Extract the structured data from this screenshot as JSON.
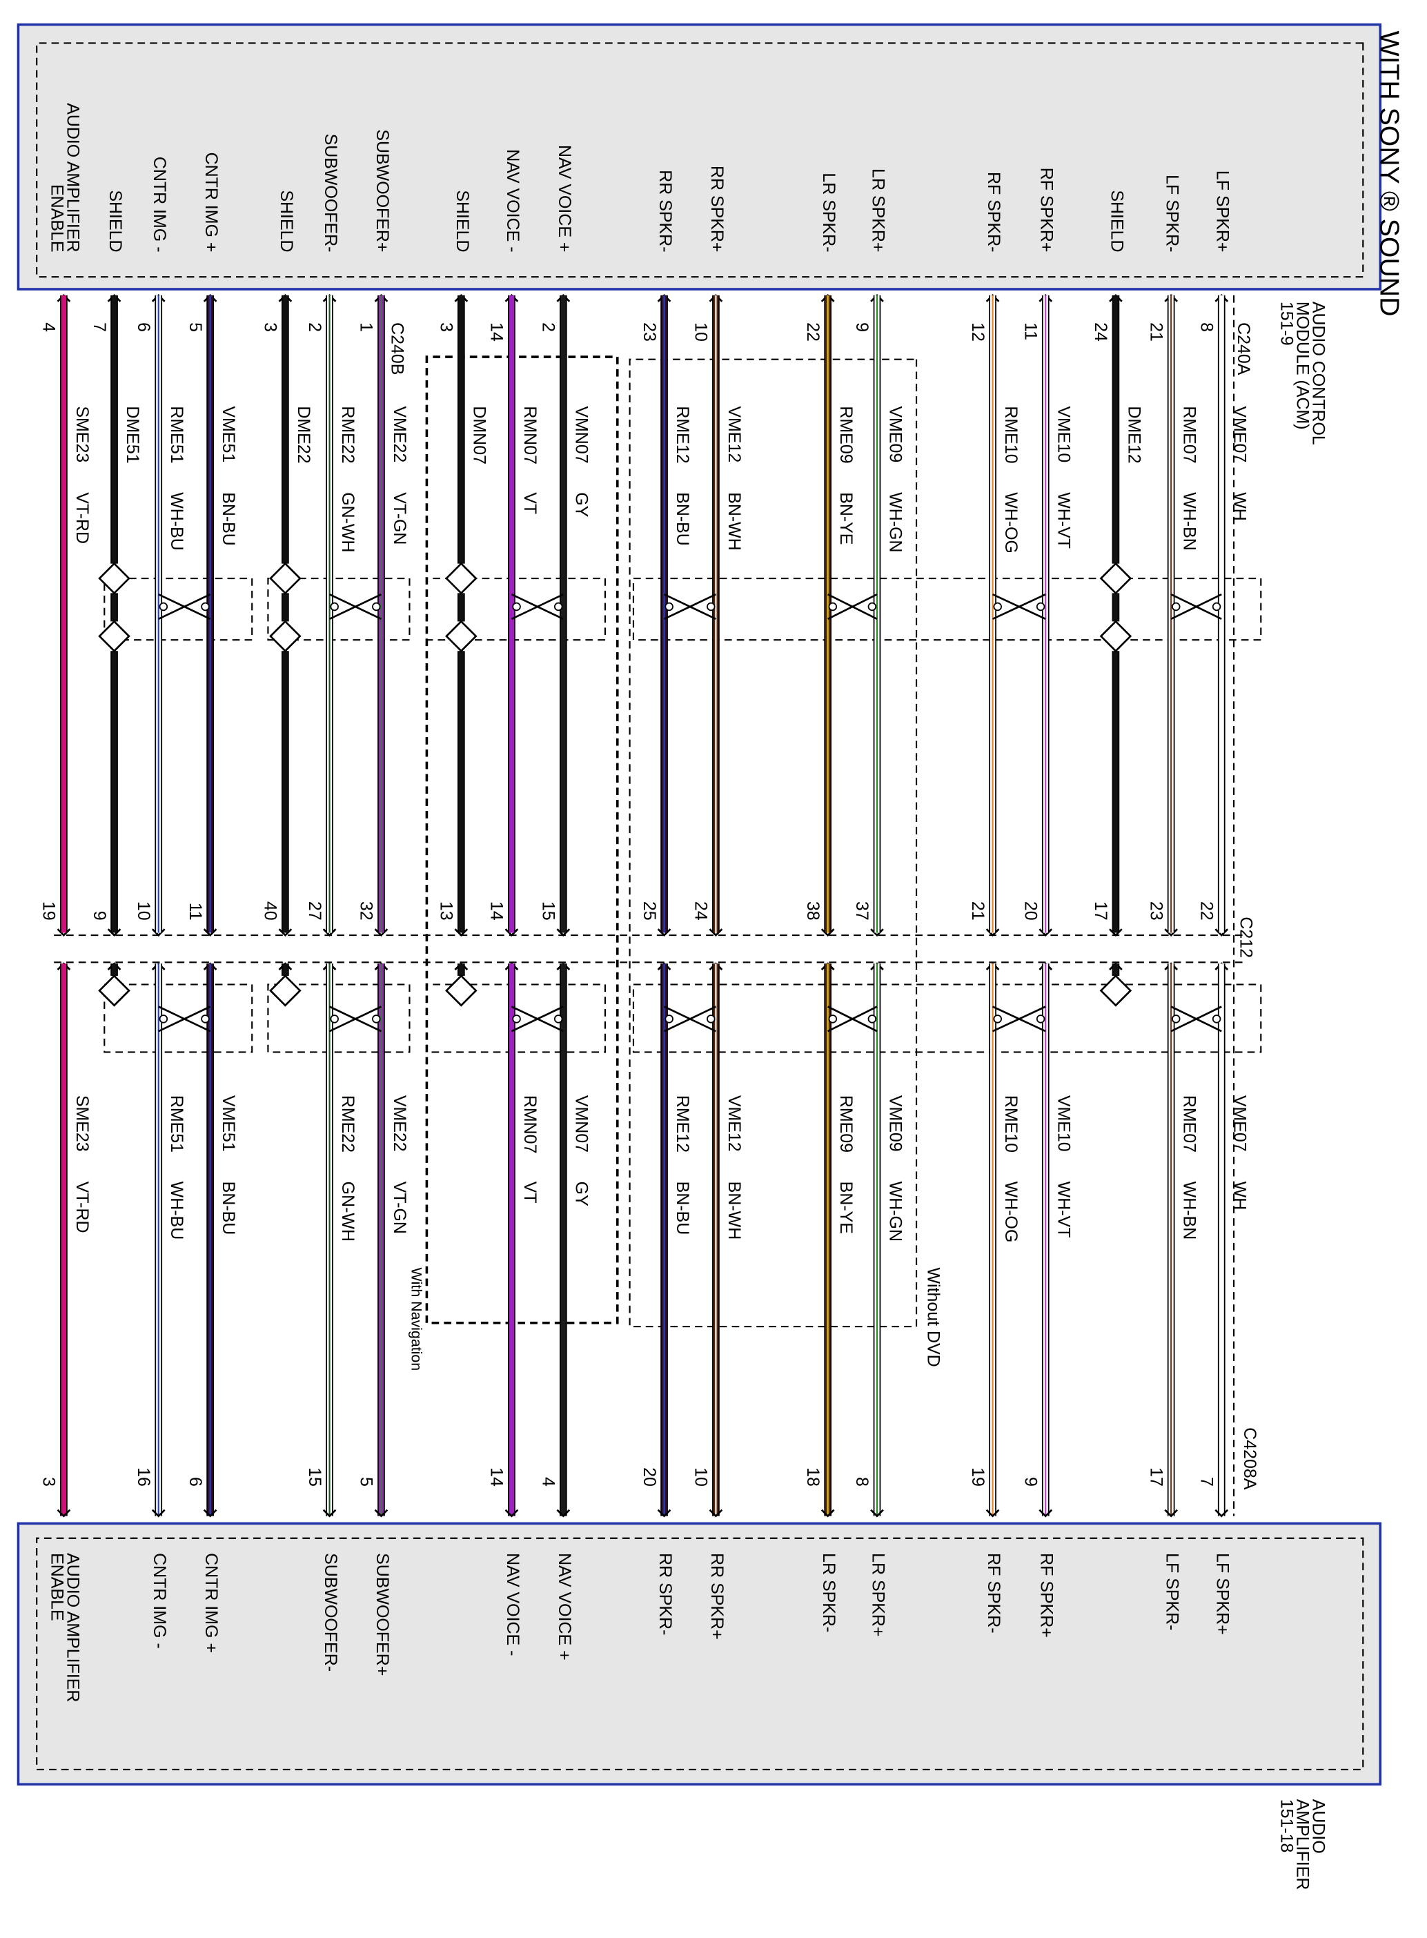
{
  "title": "WITH SONY ® SOUND",
  "modules": {
    "acm": [
      "AUDIO CONTROL",
      "MODULE (ACM)",
      "151-9"
    ],
    "amp": [
      "AUDIO",
      "AMPLIFIER",
      "151-18"
    ]
  },
  "connectors": {
    "acm_a": "C240A",
    "acm_b": "C240B",
    "inline": "C212",
    "amp": "C4208A"
  },
  "notes": {
    "navigation": "With Navigation",
    "dvd": "Without DVD"
  },
  "wires": [
    {
      "label": "LF SPKR+",
      "acm_pin": 8,
      "circuit": "VME07",
      "color": "WH",
      "inline_pin": 22,
      "amp_pin": 7,
      "amp_label": "LF SPKR+",
      "stroke": "#ffffff"
    },
    {
      "label": "LF SPKR-",
      "acm_pin": 21,
      "circuit": "RME07",
      "color": "WH-BN",
      "inline_pin": 23,
      "amp_pin": 17,
      "amp_label": "LF SPKR-",
      "stroke": "#ffffff",
      "stripe": "#6b3a1f"
    },
    {
      "label": "SHIELD",
      "acm_pin": 24,
      "circuit": "DME12",
      "inline_pin": 17,
      "stroke": "#111111"
    },
    {
      "label": "RF SPKR+",
      "acm_pin": 11,
      "circuit": "VME10",
      "color": "WH-VT",
      "inline_pin": 20,
      "amp_pin": 9,
      "amp_label": "RF SPKR+",
      "stroke": "#ffffff",
      "stripe": "#b040c0"
    },
    {
      "label": "RF SPKR-",
      "acm_pin": 12,
      "circuit": "RME10",
      "color": "WH-OG",
      "inline_pin": 21,
      "amp_pin": 19,
      "amp_label": "RF SPKR-",
      "stroke": "#ffffff",
      "stripe": "#f08020"
    },
    {
      "label": "LR SPKR+",
      "acm_pin": 9,
      "circuit": "VME09",
      "color": "WH-GN",
      "inline_pin": 37,
      "amp_pin": 8,
      "amp_label": "LR SPKR+",
      "stroke": "#ffffff",
      "stripe": "#2a8a2a"
    },
    {
      "label": "LR SPKR-",
      "acm_pin": 22,
      "circuit": "RME09",
      "color": "BN-YE",
      "inline_pin": 38,
      "amp_pin": 18,
      "amp_label": "LR SPKR-",
      "stroke": "#5a2a10",
      "stripe": "#e0c000"
    },
    {
      "label": "RR SPKR+",
      "acm_pin": 10,
      "circuit": "VME12",
      "color": "BN-WH",
      "inline_pin": 24,
      "amp_pin": 10,
      "amp_label": "RR SPKR+",
      "stroke": "#5a2a10",
      "stripe": "#ffffff"
    },
    {
      "label": "RR SPKR-",
      "acm_pin": 23,
      "circuit": "RME12",
      "color": "BN-BU",
      "inline_pin": 25,
      "amp_pin": 20,
      "amp_label": "RR SPKR-",
      "stroke": "#3a1030",
      "stripe": "#2040c0"
    },
    {
      "label": "NAV VOICE +",
      "acm_pin": 2,
      "circuit": "VMN07",
      "color": "GY",
      "inline_pin": 15,
      "amp_pin": 4,
      "amp_label": "NAV VOICE +",
      "stroke": "#1a1a1a"
    },
    {
      "label": "NAV VOICE -",
      "acm_pin": 14,
      "circuit": "RMN07",
      "color": "VT",
      "inline_pin": 14,
      "amp_pin": 14,
      "amp_label": "NAV VOICE -",
      "stroke": "#a020c0"
    },
    {
      "label": "SHIELD",
      "acm_pin": 3,
      "circuit": "DMN07",
      "inline_pin": 13,
      "stroke": "#111111"
    },
    {
      "label": "SUBWOOFER+",
      "acm_pin": 1,
      "circuit": "VME22",
      "color": "VT-GN",
      "inline_pin": 32,
      "amp_pin": 5,
      "amp_label": "SUBWOOFER+",
      "stroke": "#a020c0",
      "stripe": "#2a8a2a"
    },
    {
      "label": "SUBWOOFER-",
      "acm_pin": 2,
      "circuit": "RME22",
      "color": "GN-WH",
      "inline_pin": 27,
      "amp_pin": 15,
      "amp_label": "SUBWOOFER-",
      "stroke": "#ffffff",
      "stripe": "#1d5a1d"
    },
    {
      "label": "SHIELD",
      "acm_pin": 3,
      "circuit": "DME22",
      "inline_pin": 40,
      "stroke": "#111111"
    },
    {
      "label": "CNTR IMG +",
      "acm_pin": 5,
      "circuit": "VME51",
      "color": "BN-BU",
      "inline_pin": 11,
      "amp_pin": 6,
      "amp_label": "CNTR IMG +",
      "stroke": "#3a1030",
      "stripe": "#2040c0"
    },
    {
      "label": "CNTR IMG -",
      "acm_pin": 6,
      "circuit": "RME51",
      "color": "WH-BU",
      "inline_pin": 10,
      "amp_pin": 16,
      "amp_label": "CNTR IMG -",
      "stroke": "#ffffff",
      "stripe": "#2040c0"
    },
    {
      "label": "SHIELD",
      "acm_pin": 7,
      "circuit": "DME51",
      "inline_pin": 9,
      "stroke": "#111111"
    },
    {
      "label": [
        "AUDIO AMPLIFIER",
        "ENABLE"
      ],
      "acm_pin": 4,
      "circuit": "SME23",
      "color": "VT-RD",
      "inline_pin": 19,
      "amp_pin": 3,
      "amp_label": [
        "AUDIO AMPLIFIER",
        "ENABLE"
      ],
      "stroke": "#d0107a"
    }
  ]
}
